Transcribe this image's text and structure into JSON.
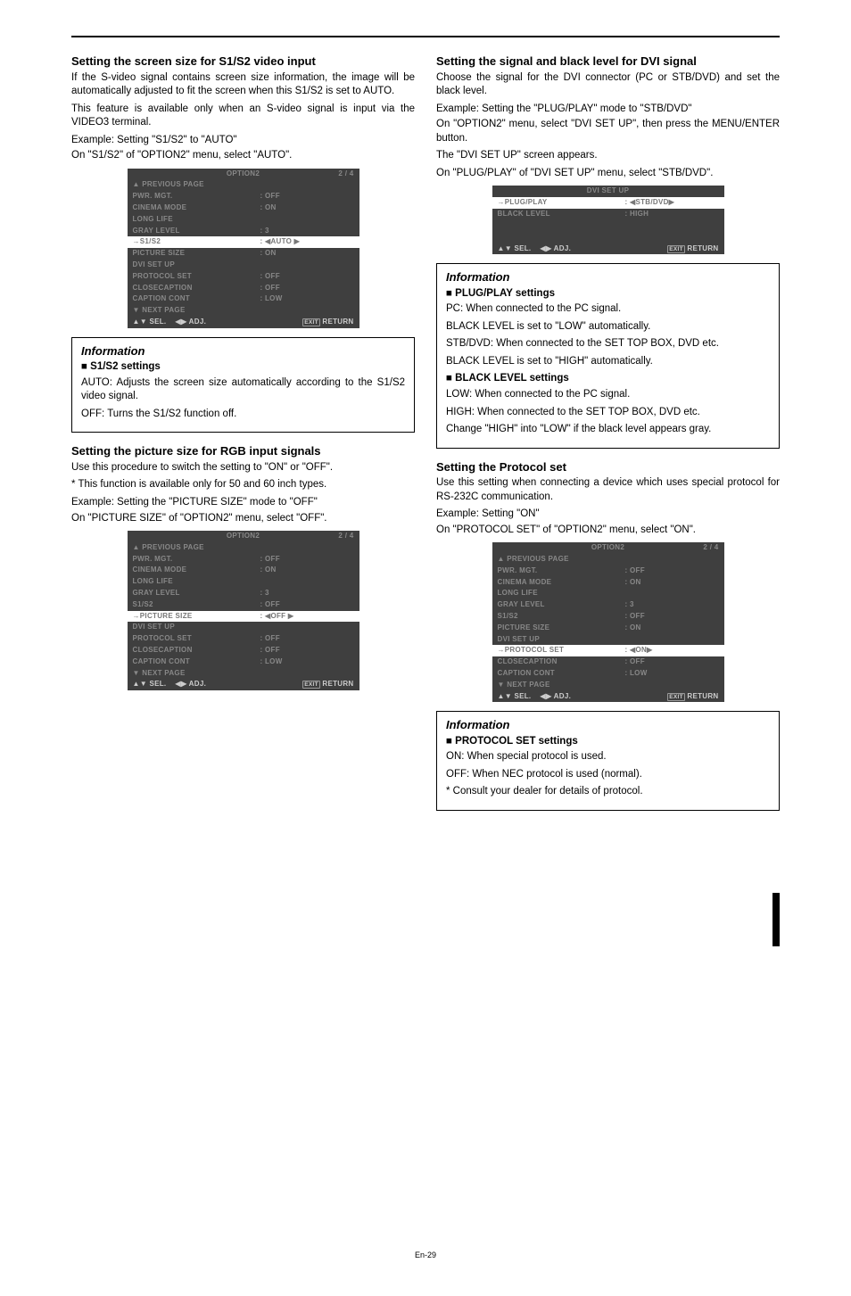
{
  "left": {
    "sec1": {
      "h": "Setting the screen size for S1/S2 video input",
      "p1": "If the S-video signal contains screen size information, the image will be automatically adjusted to fit the screen when this S1/S2 is set to AUTO.",
      "p2": "This feature is available only when an S-video signal is input via the VIDEO3 terminal.",
      "ex": "Example: Setting \"S1/S2\" to \"AUTO\"",
      "on": "On \"S1/S2\" of \"OPTION2\" menu, select \"AUTO\"."
    },
    "osd1": {
      "title": "OPTION2",
      "page": "2 / 4",
      "rows": [
        {
          "l": "▲ PREVIOUS PAGE",
          "v": "",
          "sel": false,
          "span": true
        },
        {
          "l": "PWR. MGT.",
          "v": ": OFF",
          "sel": false
        },
        {
          "l": "CINEMA MODE",
          "v": ": ON",
          "sel": false
        },
        {
          "l": "LONG LIFE",
          "v": "",
          "sel": false
        },
        {
          "l": "GRAY LEVEL",
          "v": ": 3",
          "sel": false
        },
        {
          "l": "→S1/S2",
          "v": ": ◀AUTO ▶",
          "sel": true
        },
        {
          "l": "PICTURE SIZE",
          "v": ": ON",
          "sel": false
        },
        {
          "l": "DVI SET UP",
          "v": "",
          "sel": false
        },
        {
          "l": "PROTOCOL SET",
          "v": ": OFF",
          "sel": false
        },
        {
          "l": "CLOSECAPTION",
          "v": ": OFF",
          "sel": false
        },
        {
          "l": "CAPTION CONT",
          "v": ": LOW",
          "sel": false
        },
        {
          "l": "▼ NEXT PAGE",
          "v": "",
          "sel": false,
          "span": true
        }
      ],
      "foot": {
        "sel": "▲▼ SEL.",
        "adj": "◀▶ ADJ.",
        "exit": "EXIT",
        "ret": "RETURN"
      }
    },
    "info1": {
      "title": "Information",
      "head": "S1/S2 settings",
      "auto": "AUTO:",
      "auto_t": "Adjusts the screen size automatically according to the S1/S2 video signal.",
      "off": "OFF:",
      "off_t": "Turns the S1/S2 function off."
    },
    "sec2": {
      "h": "Setting the picture size for RGB input signals",
      "p1": "Use this procedure to switch the setting to \"ON\" or \"OFF\".",
      "p2": "* This function is available only for 50 and 60 inch types.",
      "ex": "Example: Setting the \"PICTURE SIZE\" mode to \"OFF\"",
      "on": "On \"PICTURE SIZE\" of \"OPTION2\" menu, select \"OFF\"."
    },
    "osd2": {
      "title": "OPTION2",
      "page": "2 / 4",
      "rows": [
        {
          "l": "▲ PREVIOUS PAGE",
          "v": "",
          "sel": false,
          "span": true
        },
        {
          "l": "PWR. MGT.",
          "v": ": OFF",
          "sel": false
        },
        {
          "l": "CINEMA MODE",
          "v": ": ON",
          "sel": false
        },
        {
          "l": "LONG LIFE",
          "v": "",
          "sel": false
        },
        {
          "l": "GRAY LEVEL",
          "v": ": 3",
          "sel": false
        },
        {
          "l": "S1/S2",
          "v": ": OFF",
          "sel": false
        },
        {
          "l": "→PICTURE SIZE",
          "v": ": ◀OFF ▶",
          "sel": true
        },
        {
          "l": "DVI SET UP",
          "v": "",
          "sel": false
        },
        {
          "l": "PROTOCOL SET",
          "v": ": OFF",
          "sel": false
        },
        {
          "l": "CLOSECAPTION",
          "v": ": OFF",
          "sel": false
        },
        {
          "l": "CAPTION CONT",
          "v": ": LOW",
          "sel": false
        },
        {
          "l": "▼ NEXT PAGE",
          "v": "",
          "sel": false,
          "span": true
        }
      ],
      "foot": {
        "sel": "▲▼ SEL.",
        "adj": "◀▶ ADJ.",
        "exit": "EXIT",
        "ret": "RETURN"
      }
    }
  },
  "right": {
    "sec1": {
      "h": "Setting the signal and black level for DVI signal",
      "p1": "Choose the signal for the DVI connector (PC or STB/DVD) and set the black level.",
      "ex": "Example: Setting the \"PLUG/PLAY\" mode to \"STB/DVD\"",
      "on1": "On \"OPTION2\" menu, select \"DVI SET UP\", then press the MENU/ENTER button.",
      "on2": "The \"DVI SET UP\" screen appears.",
      "on3": "On \"PLUG/PLAY\" of \"DVI SET UP\" menu, select \"STB/DVD\"."
    },
    "osd3": {
      "title": "DVI SET UP",
      "page": "",
      "rows": [
        {
          "l": "→PLUG/PLAY",
          "v": ": ◀STB/DVD▶",
          "sel": true
        },
        {
          "l": "BLACK LEVEL",
          "v": ": HIGH",
          "sel": false
        }
      ],
      "foot": {
        "sel": "▲▼ SEL.",
        "adj": "◀▶ ADJ.",
        "exit": "EXIT",
        "ret": "RETURN"
      }
    },
    "info2": {
      "title": "Information",
      "head1": "PLUG/PLAY settings",
      "pc": "PC:",
      "pc_t": "When connected to the PC signal.",
      "pc2": "BLACK LEVEL is set to \"LOW\" automatically.",
      "stb": "STB/DVD:",
      "stb_t": "When connected to the SET TOP BOX, DVD etc.",
      "stb2": "BLACK LEVEL is set to \"HIGH\" automatically.",
      "head2": "BLACK LEVEL settings",
      "low": "LOW:",
      "low_t": "When connected to the PC signal.",
      "high": "HIGH:",
      "high_t": "When connected to the SET TOP BOX, DVD etc.",
      "ch": "Change \"HIGH\" into \"LOW\" if the black level appears gray."
    },
    "sec2": {
      "h": "Setting the Protocol set",
      "p1": "Use this setting when connecting a device which uses special protocol for RS-232C communication.",
      "ex": "Example: Setting \"ON\"",
      "on": "On \"PROTOCOL SET\" of \"OPTION2\" menu, select \"ON\"."
    },
    "osd4": {
      "title": "OPTION2",
      "page": "2 / 4",
      "rows": [
        {
          "l": "▲ PREVIOUS PAGE",
          "v": "",
          "sel": false,
          "span": true
        },
        {
          "l": "PWR. MGT.",
          "v": ": OFF",
          "sel": false
        },
        {
          "l": "CINEMA MODE",
          "v": ": ON",
          "sel": false
        },
        {
          "l": "LONG LIFE",
          "v": "",
          "sel": false
        },
        {
          "l": "GRAY LEVEL",
          "v": ": 3",
          "sel": false
        },
        {
          "l": "S1/S2",
          "v": ": OFF",
          "sel": false
        },
        {
          "l": "PICTURE SIZE",
          "v": ": ON",
          "sel": false
        },
        {
          "l": "DVI SET UP",
          "v": "",
          "sel": false
        },
        {
          "l": "→PROTOCOL SET",
          "v": ": ◀ON▶",
          "sel": true
        },
        {
          "l": "CLOSECAPTION",
          "v": ": OFF",
          "sel": false
        },
        {
          "l": "CAPTION CONT",
          "v": ": LOW",
          "sel": false
        },
        {
          "l": "▼ NEXT PAGE",
          "v": "",
          "sel": false,
          "span": true
        }
      ],
      "foot": {
        "sel": "▲▼ SEL.",
        "adj": "◀▶ ADJ.",
        "exit": "EXIT",
        "ret": "RETURN"
      }
    },
    "info3": {
      "title": "Information",
      "head": "PROTOCOL SET settings",
      "on": "ON:",
      "on_t": "When special protocol is used.",
      "off": "OFF:",
      "off_t": "When NEC protocol is used (normal).",
      "note": "* Consult your dealer for details of protocol."
    }
  },
  "pager": "En-29"
}
